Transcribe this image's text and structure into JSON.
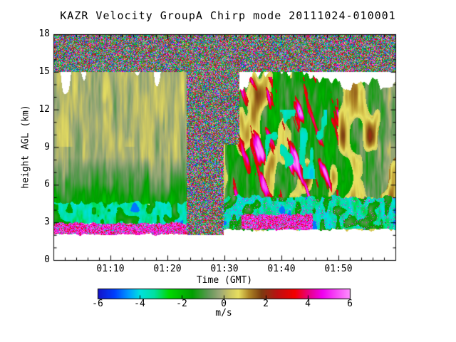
{
  "page": {
    "background": "#ffffff"
  },
  "chart_data": {
    "type": "heatmap",
    "title": "KAZR Velocity GroupA Chirp mode 20111024-010001",
    "xlabel": "Time (GMT)",
    "ylabel": "height AGL (km)",
    "x_range_minutes_after_0100": [
      0,
      60
    ],
    "x_ticks": [
      {
        "m": 10,
        "label": "01:10"
      },
      {
        "m": 20,
        "label": "01:20"
      },
      {
        "m": 30,
        "label": "01:30"
      },
      {
        "m": 40,
        "label": "01:40"
      },
      {
        "m": 50,
        "label": "01:50"
      }
    ],
    "x_minor_step": 2,
    "y_range_km": [
      0,
      18
    ],
    "y_ticks": [
      0,
      3,
      6,
      9,
      12,
      15,
      18
    ],
    "y_minor_step": 1,
    "value_units": "m/s",
    "colorbar": {
      "label": "m/s",
      "range": [
        -6,
        6
      ],
      "ticks": [
        {
          "v": -6,
          "label": "-6"
        },
        {
          "v": -4,
          "label": "-4"
        },
        {
          "v": -2,
          "label": "-2"
        },
        {
          "v": 0,
          "label": "0"
        },
        {
          "v": 2,
          "label": "2"
        },
        {
          "v": 4,
          "label": "4"
        },
        {
          "v": 6,
          "label": "6"
        }
      ]
    },
    "colormap": [
      {
        "v": -6.0,
        "c": "#1414c8"
      },
      {
        "v": -5.2,
        "c": "#0040ff"
      },
      {
        "v": -4.5,
        "c": "#00a0ff"
      },
      {
        "v": -4.0,
        "c": "#00e0e0"
      },
      {
        "v": -3.3,
        "c": "#00e0a0"
      },
      {
        "v": -2.6,
        "c": "#00d800"
      },
      {
        "v": -1.5,
        "c": "#00a000"
      },
      {
        "v": -0.7,
        "c": "#629858"
      },
      {
        "v": -0.2,
        "c": "#9aa878"
      },
      {
        "v": 0.25,
        "c": "#c8c464"
      },
      {
        "v": 0.7,
        "c": "#e8e060"
      },
      {
        "v": 1.2,
        "c": "#b08828"
      },
      {
        "v": 1.8,
        "c": "#7c3c10"
      },
      {
        "v": 2.6,
        "c": "#c01010"
      },
      {
        "v": 3.4,
        "c": "#f40000"
      },
      {
        "v": 4.1,
        "c": "#e8008c"
      },
      {
        "v": 4.7,
        "c": "#f000f0"
      },
      {
        "v": 6.0,
        "c": "#ff8cff"
      }
    ],
    "regions": [
      {
        "name": "left-stratiform-cloud",
        "kind": "stratiform",
        "t": [
          0,
          23.4
        ],
        "h": [
          4.0,
          15.1
        ],
        "base": -0.05
      },
      {
        "name": "right-convective-cloud",
        "kind": "convective",
        "t": [
          29.9,
          60
        ],
        "h": [
          2.2,
          15.1
        ],
        "base": -1.3,
        "top_profile": [
          [
            29.9,
            10.5
          ],
          [
            32,
            13.0
          ],
          [
            35,
            14.9
          ],
          [
            44,
            15.0
          ],
          [
            49,
            14.2
          ],
          [
            52,
            13.6
          ],
          [
            56,
            14.3
          ],
          [
            60,
            13.8
          ]
        ]
      },
      {
        "name": "left-cyan-band",
        "kind": "cyan_band",
        "t": [
          0,
          23.4
        ],
        "h": [
          2.85,
          4.55
        ],
        "base": -3.5,
        "magenta_specks": false
      },
      {
        "name": "right-cyan-band",
        "kind": "cyan_band",
        "t": [
          29.9,
          60
        ],
        "h": [
          2.45,
          5.05
        ],
        "base": -3.5,
        "magenta_specks": true
      },
      {
        "name": "left-magenta-band",
        "kind": "magenta_band",
        "t": [
          0,
          23.4
        ],
        "h": [
          2.05,
          2.9
        ]
      },
      {
        "name": "right-magenta-band",
        "kind": "magenta_band",
        "t": [
          33,
          45.5
        ],
        "h": [
          2.45,
          3.6
        ]
      },
      {
        "name": "clear-air-noise-column",
        "kind": "speckle",
        "t": [
          23.4,
          29.9
        ],
        "h": [
          2.0,
          15.0
        ],
        "seed": 61
      },
      {
        "name": "clear-air-noise-wedge",
        "kind": "speckle",
        "t": [
          29.9,
          32.6
        ],
        "h": [
          9.2,
          15.0
        ],
        "seed": 62
      },
      {
        "name": "top-noise-band",
        "kind": "speckle",
        "t": [
          0,
          60
        ],
        "h": [
          15.0,
          18.0
        ],
        "seed": 63
      }
    ]
  }
}
